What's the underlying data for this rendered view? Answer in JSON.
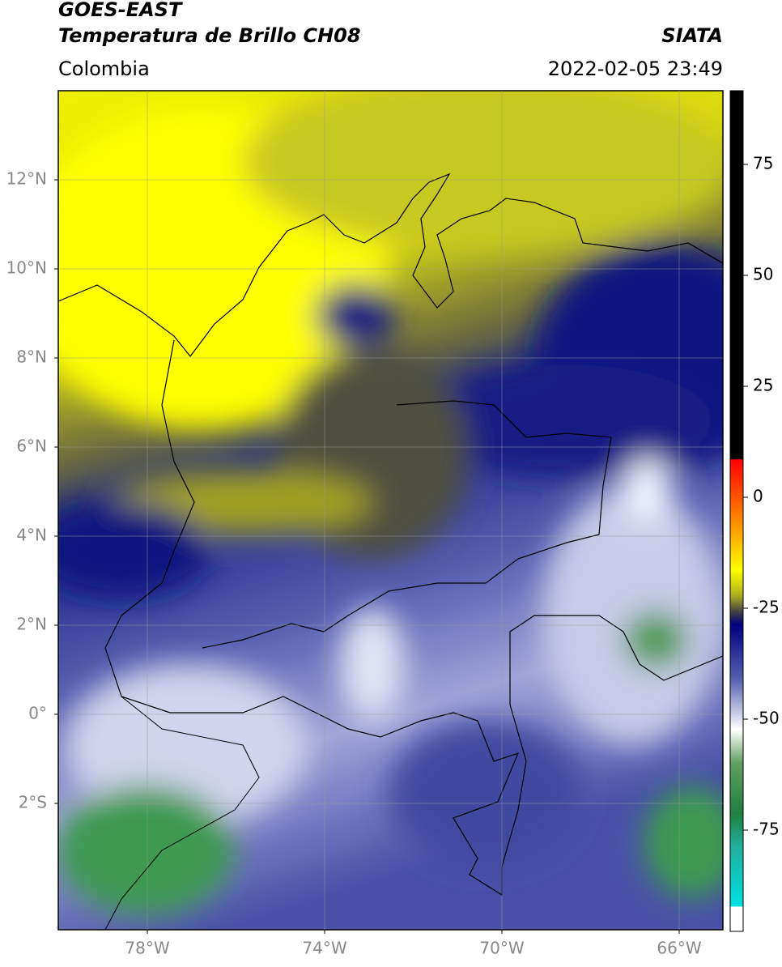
{
  "header": {
    "title_line1": "GOES-EAST",
    "title_line2": "Temperatura de Brillo CH08",
    "source": "SIATA",
    "region": "Colombia",
    "datetime": "2022-02-05 23:49"
  },
  "map": {
    "lat_ticks": [
      {
        "value": 12,
        "label": "12°N"
      },
      {
        "value": 10,
        "label": "10°N"
      },
      {
        "value": 8,
        "label": "8°N"
      },
      {
        "value": 6,
        "label": "6°N"
      },
      {
        "value": 4,
        "label": "4°N"
      },
      {
        "value": 2,
        "label": "2°N"
      },
      {
        "value": 0,
        "label": "0°"
      },
      {
        "value": -2,
        "label": "2°S"
      }
    ],
    "lon_ticks": [
      {
        "value": -78,
        "label": "78°W"
      },
      {
        "value": -74,
        "label": "74°W"
      },
      {
        "value": -70,
        "label": "70°W"
      },
      {
        "value": -66,
        "label": "66°W"
      }
    ]
  },
  "colorbar": {
    "ticks": [
      75,
      50,
      25,
      0,
      -25,
      -50,
      -75
    ]
  }
}
